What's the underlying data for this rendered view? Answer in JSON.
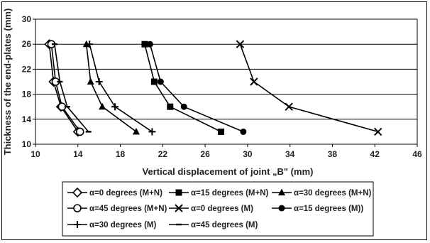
{
  "chart_data": {
    "type": "line",
    "xlabel": "Vertical displacement of joint „B\"  (mm)",
    "ylabel": "Thickness of the end-plates  (mm)",
    "xlim": [
      10,
      46
    ],
    "ylim": [
      10,
      30
    ],
    "x_ticks": [
      "10",
      "14",
      "18",
      "22",
      "26",
      "30",
      "34",
      "38",
      "42",
      "46"
    ],
    "y_ticks": [
      "10",
      "14",
      "18",
      "22",
      "26",
      "30"
    ],
    "grid": "horizontal",
    "legend_position": "bottom",
    "series": [
      {
        "name": "α=0 degrees (M+N)",
        "marker": "diamond-open",
        "x": [
          11.3,
          11.7,
          12.4,
          14.0
        ],
        "y": [
          26,
          20,
          16,
          12
        ]
      },
      {
        "name": "α=15 degrees (M+N)",
        "marker": "square",
        "x": [
          20.3,
          21.2,
          22.7,
          27.5
        ],
        "y": [
          26,
          20,
          16,
          12
        ]
      },
      {
        "name": "α=30 degrees (M+N)",
        "marker": "triangle",
        "x": [
          14.8,
          15.2,
          16.3,
          19.5
        ],
        "y": [
          26,
          20,
          16,
          12
        ]
      },
      {
        "name": "α=45 degrees (M+N)",
        "marker": "circle-open",
        "x": [
          11.5,
          11.9,
          12.5,
          14.2
        ],
        "y": [
          26,
          20,
          16,
          12
        ]
      },
      {
        "name": "α=0 degrees (M)",
        "marker": "x",
        "x": [
          29.3,
          30.6,
          33.9,
          42.3
        ],
        "y": [
          26,
          20,
          16,
          12
        ]
      },
      {
        "name": "α=15 degrees (M))",
        "marker": "circle",
        "x": [
          20.8,
          21.8,
          24.0,
          29.6
        ],
        "y": [
          26,
          20,
          16,
          12
        ]
      },
      {
        "name": "α=30 degrees (M)",
        "marker": "plus",
        "x": [
          15.1,
          16.0,
          17.5,
          21.0
        ],
        "y": [
          26,
          20,
          16,
          12
        ]
      },
      {
        "name": "α=45 degrees (M)",
        "marker": "dash",
        "x": [
          11.8,
          12.3,
          13.0,
          15.0
        ],
        "y": [
          26,
          20,
          16,
          12
        ]
      }
    ]
  }
}
